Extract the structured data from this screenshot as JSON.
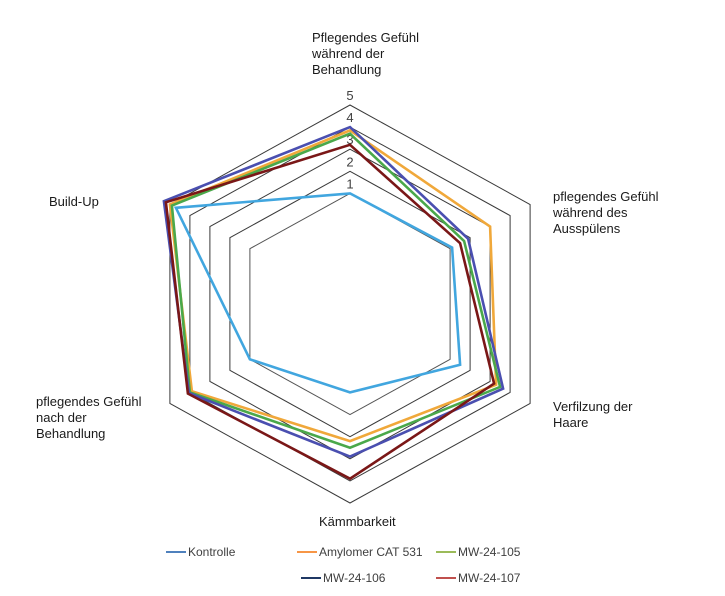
{
  "chart_data": {
    "type": "radar",
    "title": "",
    "categories": [
      "Pflegendes Gefühl\nwährend der\nBehandlung",
      "pflegendes Gefühl\nwährend des\nAusspülens",
      "Verfilzung der\nHaare",
      "Kämmbarkeit",
      "pflegendes Gefühl\nnach der\nBehandlung",
      "Build-Up"
    ],
    "radial_axis": {
      "min": -4,
      "max": 5,
      "ticks": [
        1,
        2,
        3,
        4,
        5
      ],
      "tick_labels": [
        "1",
        "2",
        "3",
        "4",
        "5"
      ]
    },
    "grid": true,
    "legend_position": "bottom",
    "series": [
      {
        "name": "Kontrolle",
        "color": "#41a6df",
        "values": [
          1.0,
          1.1,
          1.5,
          0.0,
          1.0,
          4.7
        ]
      },
      {
        "name": "Amylomer CAT 531",
        "color": "#f0a83a",
        "values": [
          3.85,
          3.0,
          3.3,
          2.2,
          3.9,
          5.0
        ]
      },
      {
        "name": "MW-24-105",
        "color": "#4aa84a",
        "values": [
          3.7,
          1.7,
          3.5,
          2.5,
          4.0,
          4.9
        ]
      },
      {
        "name": "MW-24-106",
        "color": "#4a4fb0",
        "values": [
          4.0,
          1.9,
          3.65,
          2.9,
          4.05,
          5.3
        ]
      },
      {
        "name": "MW-24-107",
        "color": "#7a1717",
        "values": [
          3.2,
          1.5,
          3.2,
          3.9,
          4.1,
          5.2
        ]
      }
    ]
  },
  "legend": {
    "items": [
      {
        "label": "Kontrolle",
        "color": "#4f81bd"
      },
      {
        "label": "Amylomer CAT 531",
        "color": "#f79646"
      },
      {
        "label": "MW-24-105",
        "color": "#9bbb59"
      },
      {
        "label": "MW-24-106",
        "color": "#1f3864"
      },
      {
        "label": "MW-24-107",
        "color": "#c0504d"
      }
    ]
  }
}
